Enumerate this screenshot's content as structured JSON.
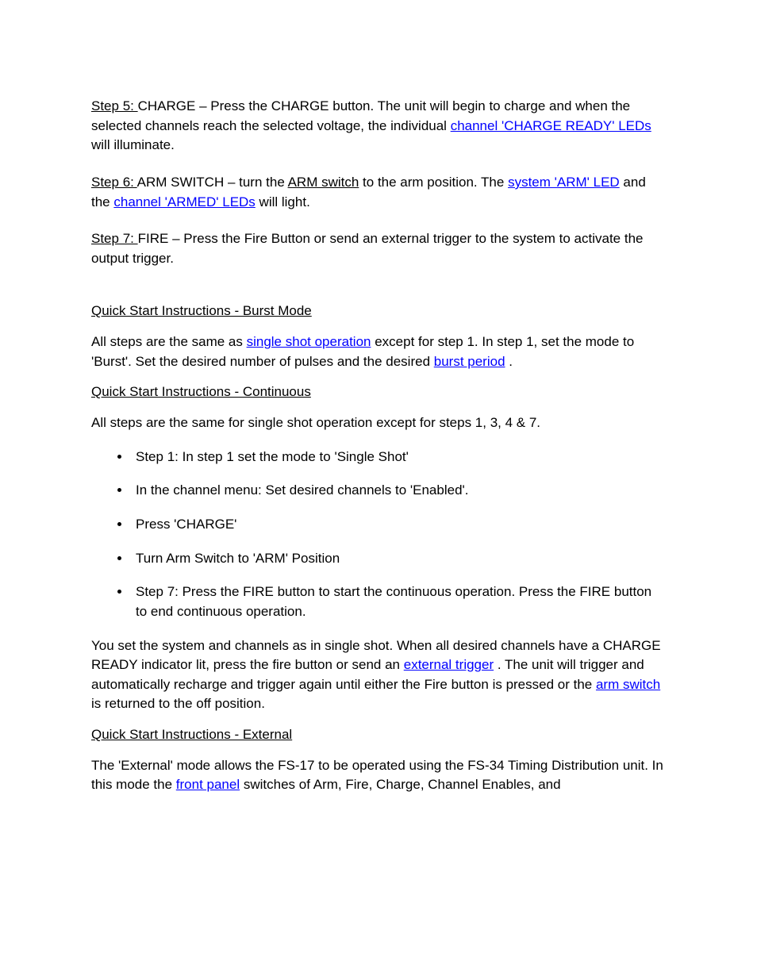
{
  "doc": {
    "step5": {
      "label": "Step 5: ",
      "action": "CHARGE",
      "after_action": " – Press the CHARGE button.  The unit will begin to charge and when the selected channels reach the selected voltage, the individual ",
      "link1": "channel 'CHARGE READY' LEDs",
      "tail": " will illuminate."
    },
    "step6": {
      "label": "Step 6: ",
      "action": "ARM SWITCH",
      "after_action": " – turn the ",
      "action2": "ARM switch",
      "after_action2": " to the arm position.  The ",
      "link1": "system 'ARM' LED",
      "mid": " and the ",
      "link2": "channel 'ARMED' LEDs",
      "tail": " will light."
    },
    "step7": {
      "label": "Step 7: ",
      "action": "FIRE",
      "after_action": " – Press the Fire Button or send an external trigger to the system to activate the output trigger."
    },
    "qs_burst": {
      "heading": "Quick Start Instructions - Burst Mode",
      "p1_a": "All steps are the same as ",
      "p1_link": "single shot operation",
      "p1_b": " except for step 1.  In step 1, set the mode to 'Burst'.  Set the desired number of pulses and the desired ",
      "p1_link2": "burst period",
      "p1_c": "."
    },
    "qs_cont": {
      "heading": "Quick Start Instructions - Continuous",
      "p1": "All steps are the same for single shot operation except for steps 1, 3, 4 & 7.",
      "bullets": {
        "b1_a": "Step 1:  In step 1 set the mode ",
        "b1_mid": "to 'Single Shot'",
        "b2": "In the channel menu:  Set desired channels to 'Enabled'.",
        "b3": "Press 'CHARGE'",
        "b4": "Turn Arm Switch to 'ARM' Position",
        "b5": "Step 7: Press the FIRE button to start the continuous operation. Press the FIRE button to end continuous operation."
      },
      "post_a": "You set the system and channels as in single shot.  When all desired channels have a CHARGE READY indicator lit, press the fire button or send an ",
      "post_link1": "external trigger",
      "post_b": ".  The unit will trigger and automatically recharge and trigger again until either the Fire button is pressed or the ",
      "post_link2": "arm switch",
      "post_c": " is returned to the off position."
    },
    "qs_ext": {
      "heading": "Quick Start Instructions - External",
      "p1_a": "The 'External' mode allows the FS-17 to be operated using the FS-34 Timing Distribution unit.  In this mode the ",
      "p1_link1": "front panel",
      "p1_b": " switches of Arm, Fire, Charge, Channel Enables, and"
    }
  }
}
